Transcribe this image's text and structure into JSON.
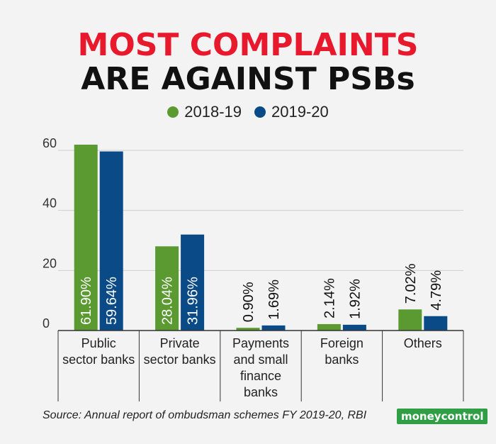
{
  "header": {
    "title_line1": "MOST COMPLAINTS",
    "title_line2": "ARE AGAINST PSBs"
  },
  "footer": {
    "source": "Source: Annual report of ombudsman schemes FY 2019-20, RBI",
    "logo_part1": "money",
    "logo_part2": "control"
  },
  "colors": {
    "series_2018": "#5a9a31",
    "series_2019": "#0a4a86",
    "title_red": "#e8192c"
  },
  "chart_data": {
    "type": "bar",
    "categories": [
      [
        "Public",
        "sector banks"
      ],
      [
        "Private",
        "sector banks"
      ],
      [
        "Payments",
        "and small",
        "finance",
        "banks"
      ],
      [
        "Foreign",
        "banks"
      ],
      [
        "Others"
      ]
    ],
    "series": [
      {
        "name": "2018-19",
        "values": [
          61.9,
          28.04,
          0.9,
          2.14,
          7.02
        ],
        "labels": [
          "61.90%",
          "28.04%",
          "0.90%",
          "2.14%",
          "7.02%"
        ]
      },
      {
        "name": "2019-20",
        "values": [
          59.64,
          31.96,
          1.69,
          1.92,
          4.79
        ],
        "labels": [
          "59.64%",
          "31.96%",
          "1.69%",
          "1.92%",
          "4.79%"
        ]
      }
    ],
    "yticks": [
      "0",
      "20",
      "40",
      "60"
    ],
    "ylim": [
      0,
      60
    ],
    "grid": true,
    "legend_position": "top-center"
  }
}
